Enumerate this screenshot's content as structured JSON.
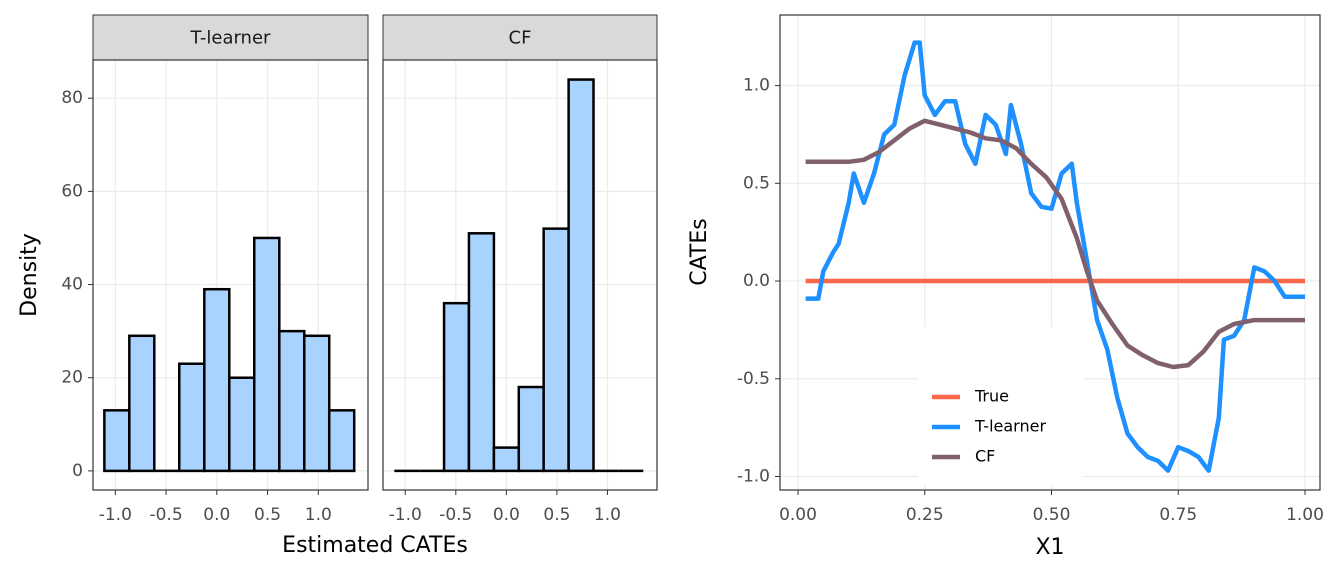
{
  "chart_data": [
    {
      "type": "histogram",
      "x_label": "Estimated CATEs",
      "y_label": "Density",
      "bins": [
        -1.108,
        -0.862,
        -0.616,
        -0.37,
        -0.123,
        0.123,
        0.369,
        0.616,
        0.862,
        1.108,
        1.354
      ],
      "panels": [
        {
          "name": "T-learner",
          "values": [
            13,
            29,
            0,
            23,
            39,
            20,
            50,
            30,
            29,
            13
          ]
        },
        {
          "name": "CF",
          "values": [
            0,
            0,
            36,
            51,
            5,
            18,
            52,
            84,
            0,
            0
          ]
        }
      ],
      "color": "#a9d3ff",
      "edge_color": "#000000",
      "strip_color": "#d9d9d9",
      "xlim": [
        -1.22,
        1.49
      ],
      "ylim": [
        -4.1,
        88.2
      ],
      "xticks": [
        {
          "value": -1,
          "label": "-1.0"
        },
        {
          "value": -0.5,
          "label": "-0.5"
        },
        {
          "value": 0,
          "label": "0.0"
        },
        {
          "value": 0.5,
          "label": "0.5"
        },
        {
          "value": 1,
          "label": "1.0"
        }
      ],
      "yticks": [
        0,
        20,
        40,
        60,
        80
      ],
      "grid": true
    },
    {
      "type": "line",
      "x_label": "X1",
      "y_label": "CATEs",
      "legend_position": "bottom",
      "grid": true,
      "xlim": [
        -0.0355,
        1.0296
      ],
      "ylim": [
        -1.069,
        1.361
      ],
      "xticks": [
        {
          "value": 0,
          "label": "0.00"
        },
        {
          "value": 0.25,
          "label": "0.25"
        },
        {
          "value": 0.5,
          "label": "0.50"
        },
        {
          "value": 0.75,
          "label": "0.75"
        },
        {
          "value": 1,
          "label": "1.00"
        }
      ],
      "yticks": [
        {
          "value": -1,
          "label": "-1.0"
        },
        {
          "value": -0.5,
          "label": "-0.5"
        },
        {
          "value": 0,
          "label": "0.0"
        },
        {
          "value": 0.5,
          "label": "0.5"
        },
        {
          "value": 1,
          "label": "1.0"
        }
      ],
      "series": [
        {
          "name": "True",
          "color": "#f8674a",
          "x": [
            0.015,
            1.0
          ],
          "values": [
            0,
            0
          ]
        },
        {
          "name": "T-learner",
          "color": "#1e90ff",
          "x": [
            0.015,
            0.04,
            0.05,
            0.07,
            0.08,
            0.1,
            0.11,
            0.13,
            0.15,
            0.17,
            0.19,
            0.21,
            0.23,
            0.24,
            0.25,
            0.27,
            0.29,
            0.31,
            0.33,
            0.35,
            0.37,
            0.39,
            0.41,
            0.42,
            0.44,
            0.46,
            0.48,
            0.5,
            0.52,
            0.54,
            0.55,
            0.57,
            0.59,
            0.61,
            0.63,
            0.65,
            0.67,
            0.69,
            0.71,
            0.73,
            0.75,
            0.77,
            0.79,
            0.81,
            0.83,
            0.84,
            0.86,
            0.88,
            0.9,
            0.92,
            0.94,
            0.96,
            0.98,
            1.0
          ],
          "values": [
            -0.09,
            -0.09,
            0.05,
            0.15,
            0.19,
            0.4,
            0.55,
            0.4,
            0.55,
            0.75,
            0.8,
            1.05,
            1.22,
            1.22,
            0.95,
            0.85,
            0.92,
            0.92,
            0.7,
            0.6,
            0.85,
            0.8,
            0.65,
            0.9,
            0.7,
            0.45,
            0.38,
            0.37,
            0.55,
            0.6,
            0.4,
            0.1,
            -0.2,
            -0.35,
            -0.6,
            -0.78,
            -0.85,
            -0.9,
            -0.92,
            -0.97,
            -0.85,
            -0.87,
            -0.9,
            -0.97,
            -0.7,
            -0.3,
            -0.28,
            -0.2,
            0.07,
            0.05,
            0.0,
            -0.08,
            -0.08,
            -0.08
          ]
        },
        {
          "name": "CF",
          "color": "#80606d",
          "x": [
            0.015,
            0.05,
            0.1,
            0.13,
            0.16,
            0.19,
            0.22,
            0.25,
            0.28,
            0.31,
            0.34,
            0.37,
            0.4,
            0.43,
            0.46,
            0.49,
            0.52,
            0.55,
            0.57,
            0.59,
            0.62,
            0.65,
            0.68,
            0.71,
            0.74,
            0.77,
            0.8,
            0.83,
            0.86,
            0.9,
            0.95,
            1.0
          ],
          "values": [
            0.61,
            0.61,
            0.61,
            0.62,
            0.66,
            0.72,
            0.78,
            0.82,
            0.8,
            0.78,
            0.76,
            0.73,
            0.72,
            0.68,
            0.6,
            0.53,
            0.42,
            0.22,
            0.05,
            -0.1,
            -0.22,
            -0.33,
            -0.38,
            -0.42,
            -0.44,
            -0.43,
            -0.36,
            -0.26,
            -0.22,
            -0.2,
            -0.2,
            -0.2
          ]
        }
      ]
    }
  ]
}
